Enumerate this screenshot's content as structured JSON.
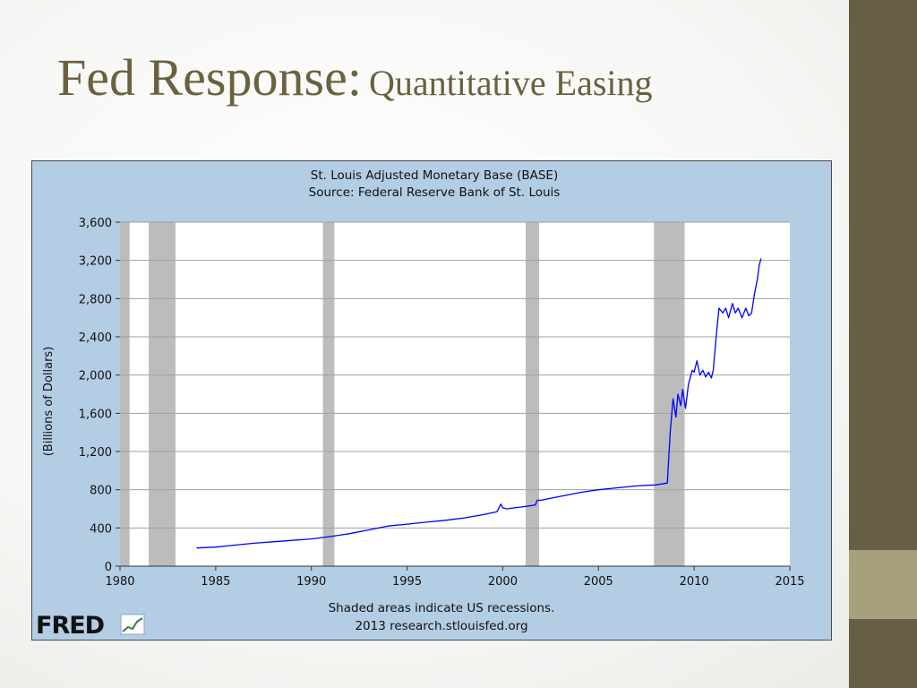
{
  "slide": {
    "title_main": "Fed Response:",
    "title_sub": "Quantitative Easing"
  },
  "colors": {
    "title": "#6b6140",
    "bar_dark": "#665e45",
    "bar_accent": "#a7a07c",
    "chart_bg": "#b3cde4",
    "plot_bg": "#ffffff",
    "recession": "#bcbcbc",
    "series": "#0000ff"
  },
  "chart_data": {
    "type": "line",
    "title": "St. Louis Adjusted Monetary Base (BASE)",
    "subtitle": "Source: Federal Reserve Bank of St. Louis",
    "xlabel": "",
    "ylabel": "(Billions of Dollars)",
    "xlim": [
      1980,
      2015
    ],
    "ylim": [
      0,
      3600
    ],
    "x_ticks": [
      "1980",
      "1985",
      "1990",
      "1995",
      "2000",
      "2005",
      "2010",
      "2015"
    ],
    "y_ticks": [
      "0",
      "400",
      "800",
      "1,200",
      "1,600",
      "2,000",
      "2,400",
      "2,800",
      "3,200",
      "3,600"
    ],
    "grid": true,
    "legend": "none",
    "footnote": "Shaded areas indicate US recessions.",
    "credit": "2013 research.stlouisfed.org",
    "brand": "FRED",
    "recessions": [
      [
        1980.0,
        1980.5
      ],
      [
        1981.5,
        1982.9
      ],
      [
        1990.6,
        1991.2
      ],
      [
        2001.2,
        2001.9
      ],
      [
        2007.9,
        2009.5
      ]
    ],
    "series": [
      {
        "x": [
          1984.0,
          1985.0,
          1986.0,
          1987.0,
          1988.0,
          1989.0,
          1990.0,
          1991.0,
          1992.0,
          1993.0,
          1994.0,
          1995.0,
          1996.0,
          1997.0,
          1998.0,
          1999.0,
          1999.7,
          1999.9,
          2000.0,
          2000.2,
          2001.0,
          2001.7,
          2001.8,
          2002.0,
          2003.0,
          2004.0,
          2005.0,
          2006.0,
          2007.0,
          2008.0,
          2008.6,
          2008.75,
          2008.9,
          2009.0,
          2009.05,
          2009.15,
          2009.3,
          2009.4,
          2009.55,
          2009.7,
          2009.9,
          2010.0,
          2010.15,
          2010.3,
          2010.45,
          2010.6,
          2010.75,
          2010.9,
          2011.0,
          2011.15,
          2011.3,
          2011.5,
          2011.65,
          2011.8,
          2012.0,
          2012.15,
          2012.3,
          2012.5,
          2012.7,
          2012.85,
          2013.0,
          2013.15,
          2013.3,
          2013.4,
          2013.5
        ],
        "values": [
          190,
          200,
          220,
          240,
          255,
          270,
          285,
          310,
          340,
          380,
          420,
          440,
          460,
          480,
          505,
          540,
          570,
          650,
          610,
          600,
          620,
          640,
          690,
          690,
          730,
          770,
          800,
          820,
          840,
          850,
          870,
          1400,
          1750,
          1620,
          1560,
          1800,
          1680,
          1850,
          1650,
          1900,
          2050,
          2030,
          2150,
          2000,
          2050,
          1980,
          2030,
          1970,
          2050,
          2400,
          2700,
          2650,
          2700,
          2600,
          2750,
          2650,
          2700,
          2600,
          2700,
          2620,
          2650,
          2850,
          3000,
          3150,
          3220
        ]
      }
    ]
  }
}
